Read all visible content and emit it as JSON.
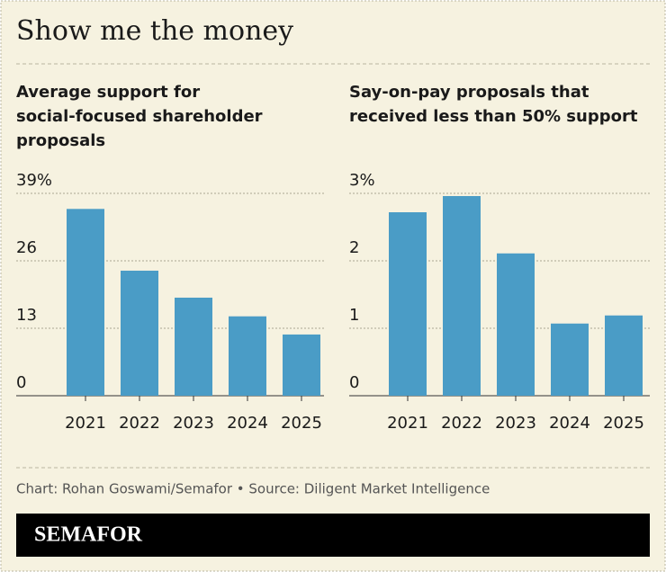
{
  "title": "Show me the money",
  "source": "Chart: Rohan Goswami/Semafor • Source: Diligent Market Intelligence",
  "brand": "SEMAFOR",
  "chart_data": [
    {
      "type": "bar",
      "title": "Average support for social-focused shareholder proposals",
      "categories": [
        "2021",
        "2022",
        "2023",
        "2024",
        "2025"
      ],
      "values": [
        36.0,
        24.1,
        18.9,
        15.3,
        11.8
      ],
      "color": "#4a9cc6",
      "ylim": [
        0,
        39
      ],
      "yticks": [
        0,
        13,
        26,
        {
          "value": 39,
          "label": "39%"
        }
      ],
      "grid": true
    },
    {
      "type": "bar",
      "title": "Say-on-pay proposals that received less than 50% support",
      "categories": [
        "2021",
        "2022",
        "2023",
        "2024",
        "2025"
      ],
      "values": [
        2.72,
        2.96,
        2.11,
        1.07,
        1.19
      ],
      "color": "#4a9cc6",
      "ylim": [
        0,
        3
      ],
      "yticks": [
        0,
        1,
        2,
        {
          "value": 3,
          "label": "3%"
        }
      ],
      "grid": true
    }
  ]
}
